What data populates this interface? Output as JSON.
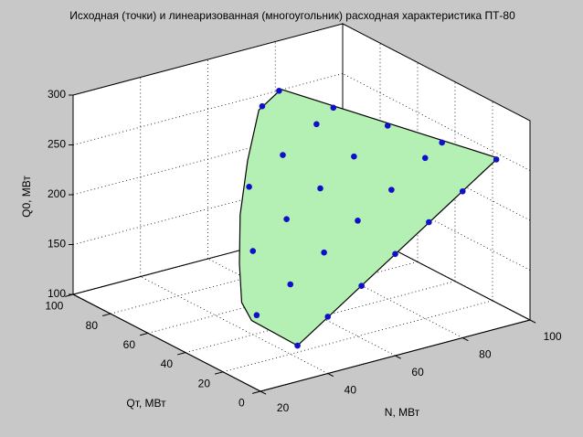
{
  "chart_data": {
    "type": "scatter3d",
    "title": "Исходная (точки) и линеаризованная (многоугольник) расходная характеристика ПТ-80",
    "xlabel": "N, МВт",
    "ylabel": "Qт, МВт",
    "zlabel": "Q0, МВт",
    "xlim": [
      20,
      100
    ],
    "ylim": [
      0,
      100
    ],
    "zlim": [
      100,
      300
    ],
    "xticks": [
      20,
      40,
      60,
      80,
      100
    ],
    "yticks": [
      0,
      20,
      40,
      60,
      80,
      100
    ],
    "zticks": [
      100,
      150,
      200,
      250,
      300
    ],
    "grid": true,
    "point_color": "#1010c8",
    "polygon_color": "#b4f0b4",
    "points": {
      "x": [
        31,
        40,
        50,
        60,
        70,
        80,
        90,
        30,
        40,
        50,
        60,
        70,
        80,
        85,
        40,
        50,
        60,
        70,
        80,
        50,
        60,
        70,
        75,
        65,
        70
      ],
      "y": [
        0,
        0,
        0,
        0,
        0,
        0,
        0,
        20,
        20,
        20,
        20,
        20,
        20,
        20,
        40,
        40,
        40,
        40,
        40,
        60,
        60,
        60,
        60,
        80,
        80
      ],
      "z": [
        136,
        157,
        179,
        202,
        225,
        247,
        270,
        148,
        170,
        193,
        216,
        238,
        261,
        272,
        184,
        207,
        229,
        252,
        274,
        220,
        243,
        265,
        277,
        268,
        279
      ]
    },
    "polygon": {
      "x": [
        31,
        90.5,
        70.6,
        64,
        54,
        44,
        36,
        30,
        28.5
      ],
      "y": [
        0,
        0,
        80,
        80,
        68,
        54,
        40,
        28,
        20
      ],
      "z": [
        136,
        271,
        280,
        265,
        235,
        203,
        175,
        153,
        144
      ]
    }
  }
}
